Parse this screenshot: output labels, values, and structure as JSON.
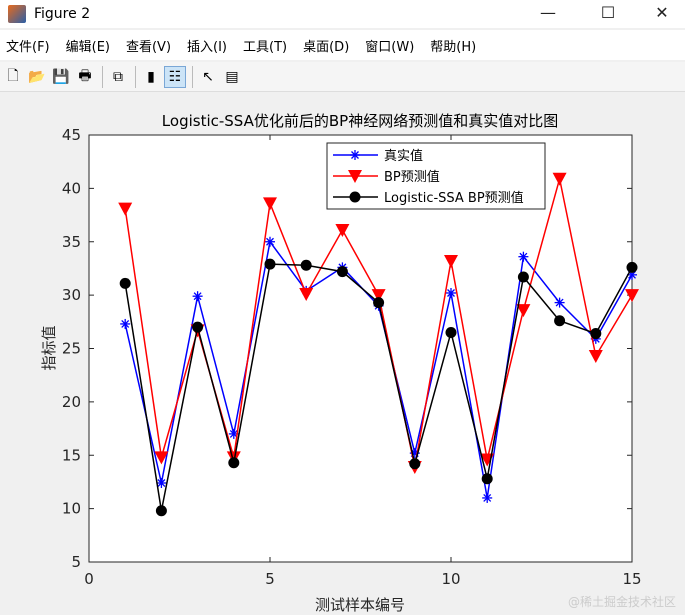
{
  "window": {
    "title": "Figure 2",
    "minimize": "—",
    "maximize": "☐",
    "close": "✕"
  },
  "menu": [
    "文件(F)",
    "编辑(E)",
    "查看(V)",
    "插入(I)",
    "工具(T)",
    "桌面(D)",
    "窗口(W)",
    "帮助(H)"
  ],
  "toolbar": [
    {
      "icon": "new-figure-icon",
      "glyph": "🗋"
    },
    {
      "icon": "open-icon",
      "glyph": "📂"
    },
    {
      "icon": "save-icon",
      "glyph": "💾"
    },
    {
      "icon": "print-icon",
      "glyph": "🖶"
    },
    {
      "icon": "link-plot-icon",
      "glyph": "⧉"
    },
    {
      "icon": "colorbar-icon",
      "glyph": "▮"
    },
    {
      "icon": "legend-icon",
      "glyph": "☷"
    },
    {
      "icon": "pointer-icon",
      "glyph": "↖"
    },
    {
      "icon": "property-inspector-icon",
      "glyph": "▤"
    }
  ],
  "watermark": "@稀土掘金技术社区",
  "chart_data": {
    "type": "line",
    "title": "Logistic-SSA优化前后的BP神经网络预测值和真实值对比图",
    "xlabel": "测试样本编号",
    "ylabel": "指标值",
    "xlim": [
      0,
      15
    ],
    "ylim": [
      5,
      45
    ],
    "xticks": [
      0,
      5,
      10,
      15
    ],
    "yticks": [
      5,
      10,
      15,
      20,
      25,
      30,
      35,
      40,
      45
    ],
    "grid": false,
    "legend_position": "top-right",
    "x": [
      1,
      2,
      3,
      4,
      5,
      6,
      7,
      8,
      9,
      10,
      11,
      12,
      13,
      14,
      15
    ],
    "series": [
      {
        "name": "真实值",
        "color": "#0000ff",
        "marker": "asterisk",
        "values": [
          27.3,
          12.4,
          29.9,
          17.0,
          35.0,
          30.4,
          32.6,
          29.0,
          15.2,
          30.2,
          11.0,
          33.6,
          29.3,
          25.9,
          31.9
        ]
      },
      {
        "name": "BP预测值",
        "color": "#ff0000",
        "marker": "triangle-down",
        "values": [
          38.1,
          14.8,
          26.7,
          14.8,
          38.6,
          30.1,
          36.1,
          30.0,
          13.9,
          33.2,
          14.6,
          28.6,
          40.9,
          24.3,
          30.0
        ]
      },
      {
        "name": "Logistic-SSA BP预测值",
        "color": "#000000",
        "marker": "circle",
        "values": [
          31.1,
          9.8,
          27.0,
          14.3,
          32.9,
          32.8,
          32.2,
          29.3,
          14.2,
          26.5,
          12.8,
          31.7,
          27.6,
          26.4,
          32.6
        ]
      }
    ]
  }
}
